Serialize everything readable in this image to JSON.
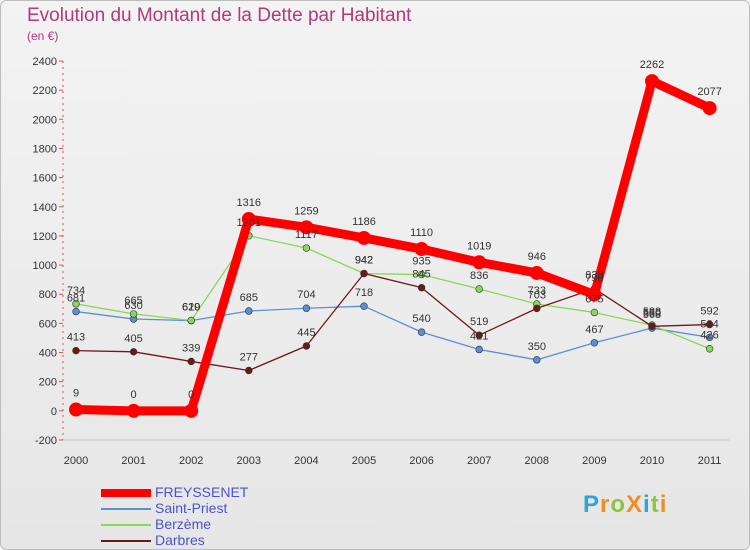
{
  "chart_data": {
    "type": "line",
    "title": "Evolution du Montant de la Dette par Habitant",
    "subtitle": "(en €)",
    "x": [
      "2000",
      "2001",
      "2002",
      "2003",
      "2004",
      "2005",
      "2006",
      "2007",
      "2008",
      "2009",
      "2010",
      "2011"
    ],
    "ylim": [
      -200,
      2400
    ],
    "yticks": [
      -200,
      0,
      200,
      400,
      600,
      800,
      1000,
      1200,
      1400,
      1600,
      1800,
      2000,
      2200,
      2400
    ],
    "grid": false,
    "legend_position": "bottom-left",
    "series": [
      {
        "name": "FREYSSENET",
        "color": "#ff0000",
        "values": [
          9,
          0,
          0,
          1316,
          1259,
          1186,
          1110,
          1019,
          946,
          798,
          2262,
          2077
        ]
      },
      {
        "name": "Saint-Priest",
        "color": "#5b8fcf",
        "values": [
          681,
          630,
          619,
          685,
          704,
          718,
          540,
          421,
          350,
          467,
          568,
          504
        ]
      },
      {
        "name": "Berzème",
        "color": "#88d859",
        "values": [
          734,
          665,
          620,
          1201,
          1117,
          942,
          935,
          836,
          733,
          675,
          588,
          426
        ]
      },
      {
        "name": "Darbres",
        "color": "#6b1a1a",
        "values": [
          413,
          405,
          339,
          277,
          445,
          942,
          845,
          519,
          703,
          838,
          580,
          592
        ]
      }
    ]
  },
  "logo": {
    "text": "ProXiti",
    "letters": [
      {
        "ch": "P",
        "color": "#2aa6d8"
      },
      {
        "ch": "r",
        "color": "#f28c1e"
      },
      {
        "ch": "o",
        "color": "#8cc63f"
      },
      {
        "ch": "X",
        "color": "#f28c1e"
      },
      {
        "ch": "i",
        "color": "#2aa6d8"
      },
      {
        "ch": "t",
        "color": "#8cc63f"
      },
      {
        "ch": "i",
        "color": "#f28c1e"
      }
    ]
  }
}
